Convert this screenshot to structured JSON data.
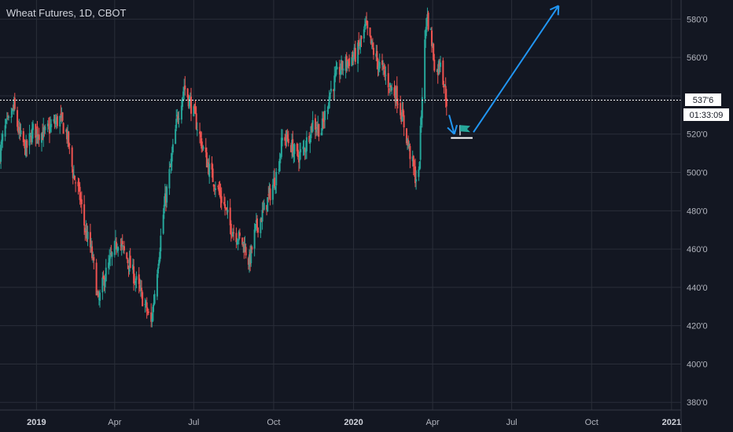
{
  "header": {
    "title": "Wheat Futures, 1D, CBOT"
  },
  "last_price": {
    "label": "537'6",
    "countdown": "01:33:09"
  },
  "colors": {
    "background": "#131722",
    "grid": "#2a2e39",
    "up": "#26a69a",
    "down": "#ef5350",
    "annotation": "#2196f3",
    "axis_text": "#b2b5be"
  },
  "chart_data": {
    "type": "candlestick",
    "symbol": "Wheat Futures",
    "interval": "1D",
    "exchange": "CBOT",
    "y_ticks": [
      "380'0",
      "400'0",
      "420'0",
      "440'0",
      "460'0",
      "480'0",
      "500'0",
      "520'0",
      "540'0",
      "560'0",
      "580'0"
    ],
    "y_tick_values": [
      380,
      400,
      420,
      440,
      460,
      480,
      500,
      520,
      540,
      560,
      580
    ],
    "ylim": [
      376,
      590
    ],
    "x_ticks": [
      "2019",
      "Apr",
      "Jul",
      "Oct",
      "2020",
      "Apr",
      "Jul",
      "Oct",
      "2021"
    ],
    "x_tick_dates": [
      "2019-01-01",
      "2019-04-01",
      "2019-07-01",
      "2019-10-01",
      "2020-01-01",
      "2020-04-01",
      "2020-07-01",
      "2020-10-01",
      "2021-01-01"
    ],
    "bold_x_ticks": [
      "2019",
      "2020",
      "2021"
    ],
    "xlim": [
      "2018-11-20",
      "2021-01-12"
    ],
    "horizontal_line": 537.75,
    "price_path_close": [
      [
        "2018-11-20",
        510
      ],
      [
        "2018-11-25",
        522
      ],
      [
        "2018-12-01",
        527
      ],
      [
        "2018-12-06",
        534
      ],
      [
        "2018-12-12",
        520
      ],
      [
        "2018-12-20",
        512
      ],
      [
        "2018-12-28",
        522
      ],
      [
        "2019-01-10",
        520
      ],
      [
        "2019-01-20",
        525
      ],
      [
        "2019-01-28",
        528
      ],
      [
        "2019-02-05",
        520
      ],
      [
        "2019-02-12",
        500
      ],
      [
        "2019-02-20",
        487
      ],
      [
        "2019-02-26",
        470
      ],
      [
        "2019-03-05",
        459
      ],
      [
        "2019-03-10",
        445
      ],
      [
        "2019-03-13",
        431
      ],
      [
        "2019-03-20",
        445
      ],
      [
        "2019-03-28",
        455
      ],
      [
        "2019-04-05",
        465
      ],
      [
        "2019-04-12",
        458
      ],
      [
        "2019-04-20",
        450
      ],
      [
        "2019-04-28",
        440
      ],
      [
        "2019-05-05",
        432
      ],
      [
        "2019-05-10",
        425
      ],
      [
        "2019-05-13",
        421
      ],
      [
        "2019-05-20",
        450
      ],
      [
        "2019-05-28",
        482
      ],
      [
        "2019-06-05",
        505
      ],
      [
        "2019-06-12",
        528
      ],
      [
        "2019-06-20",
        545
      ],
      [
        "2019-06-28",
        535
      ],
      [
        "2019-07-04",
        526
      ],
      [
        "2019-07-12",
        512
      ],
      [
        "2019-07-20",
        500
      ],
      [
        "2019-07-28",
        492
      ],
      [
        "2019-08-05",
        483
      ],
      [
        "2019-08-12",
        472
      ],
      [
        "2019-08-20",
        467
      ],
      [
        "2019-08-28",
        462
      ],
      [
        "2019-09-03",
        453
      ],
      [
        "2019-09-10",
        470
      ],
      [
        "2019-09-18",
        478
      ],
      [
        "2019-09-26",
        488
      ],
      [
        "2019-10-05",
        500
      ],
      [
        "2019-10-12",
        520
      ],
      [
        "2019-10-20",
        515
      ],
      [
        "2019-10-28",
        508
      ],
      [
        "2019-11-05",
        512
      ],
      [
        "2019-11-15",
        526
      ],
      [
        "2019-11-25",
        522
      ],
      [
        "2019-12-05",
        542
      ],
      [
        "2019-12-15",
        553
      ],
      [
        "2019-12-25",
        558
      ],
      [
        "2020-01-05",
        562
      ],
      [
        "2020-01-15",
        576
      ],
      [
        "2020-01-20",
        568
      ],
      [
        "2020-01-28",
        558
      ],
      [
        "2020-02-05",
        552
      ],
      [
        "2020-02-12",
        545
      ],
      [
        "2020-02-20",
        540
      ],
      [
        "2020-02-28",
        525
      ],
      [
        "2020-03-05",
        512
      ],
      [
        "2020-03-12",
        498
      ],
      [
        "2020-03-16",
        498
      ],
      [
        "2020-03-20",
        542
      ],
      [
        "2020-03-25",
        583
      ],
      [
        "2020-03-30",
        572
      ],
      [
        "2020-04-05",
        550
      ],
      [
        "2020-04-10",
        560
      ],
      [
        "2020-04-14",
        546
      ],
      [
        "2020-04-17",
        537.75
      ]
    ],
    "annotations": {
      "arrow_down": [
        [
          "2020-04-20",
          530
        ],
        [
          "2020-04-26",
          520
        ]
      ],
      "support_line": {
        "from": "2020-04-22",
        "to": "2020-05-17",
        "value": 518
      },
      "flag_at": [
        "2020-05-08",
        521
      ],
      "arrow_up": [
        [
          "2020-05-18",
          521
        ],
        [
          "2020-08-24",
          587
        ]
      ]
    }
  }
}
